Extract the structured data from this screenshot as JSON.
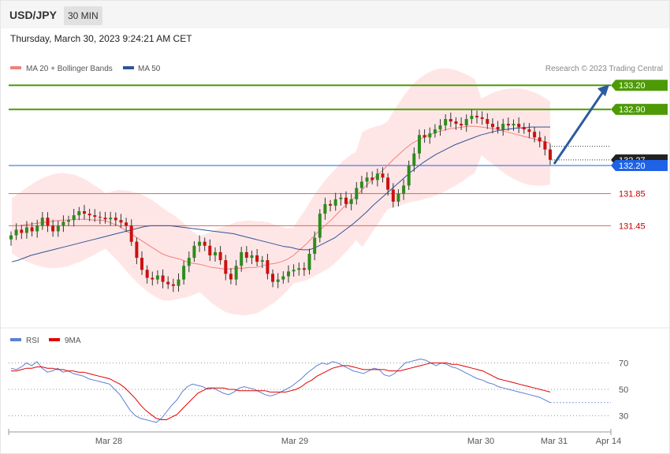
{
  "header": {
    "symbol": "USD/JPY",
    "timeframe": "30 MIN",
    "timestamp": "Thursday, March 30, 2023 9:24:21 AM CET"
  },
  "legend_main": {
    "items": [
      {
        "label": "MA 20 + Bollinger Bands",
        "color": "#f08080"
      },
      {
        "label": "MA 50",
        "color": "#2f5496"
      }
    ],
    "credit": "Research © 2023 Trading Central"
  },
  "legend_rsi": {
    "items": [
      {
        "label": "RSI",
        "color": "#5b7fd6"
      },
      {
        "label": "9MA",
        "color": "#e00000"
      }
    ]
  },
  "colors": {
    "resistance": "#4d9a06",
    "support": "#e06060",
    "current": "#1e62e6",
    "up_candle": "#2e8b1e",
    "down_candle": "#cc1010",
    "band_fill": "#ffdede"
  },
  "chart_data": {
    "type": "candlestick",
    "instrument": "USD/JPY",
    "interval": "30 MIN",
    "y_range": [
      131.0,
      133.3
    ],
    "x_labels": [
      "Mar 28",
      "Mar 29",
      "Mar 30",
      "Mar 31",
      "Apr 14"
    ],
    "levels": [
      {
        "value": 133.2,
        "label": "133.20",
        "kind": "resistance"
      },
      {
        "value": 132.9,
        "label": "132.90",
        "kind": "resistance"
      },
      {
        "value": 132.27,
        "label": "132.27",
        "kind": "last"
      },
      {
        "value": 132.2,
        "label": "132.20",
        "kind": "pivot"
      },
      {
        "value": 131.85,
        "label": "131.85",
        "kind": "support"
      },
      {
        "value": 131.45,
        "label": "131.45",
        "kind": "support"
      }
    ],
    "forecast_arrow": {
      "from": 132.22,
      "to": 133.2
    },
    "close_series": [
      131.33,
      131.4,
      131.36,
      131.43,
      131.38,
      131.45,
      131.55,
      131.45,
      131.38,
      131.45,
      131.5,
      131.52,
      131.58,
      131.63,
      131.6,
      131.58,
      131.56,
      131.55,
      131.53,
      131.55,
      131.52,
      131.49,
      131.45,
      131.25,
      131.05,
      130.9,
      130.8,
      130.78,
      130.83,
      130.75,
      130.72,
      130.7,
      130.78,
      130.95,
      131.05,
      131.2,
      131.25,
      131.2,
      131.08,
      131.12,
      131.02,
      130.85,
      130.78,
      130.95,
      131.12,
      131.05,
      131.08,
      131.0,
      131.02,
      130.85,
      130.75,
      130.78,
      130.82,
      130.88,
      130.9,
      130.92,
      130.9,
      131.1,
      131.3,
      131.6,
      131.72,
      131.7,
      131.78,
      131.8,
      131.72,
      131.78,
      131.92,
      132.0,
      132.05,
      132.02,
      132.1,
      132.05,
      131.9,
      131.75,
      131.85,
      131.95,
      132.2,
      132.35,
      132.58,
      132.55,
      132.6,
      132.65,
      132.7,
      132.78,
      132.75,
      132.72,
      132.7,
      132.78,
      132.82,
      132.8,
      132.78,
      132.72,
      132.68,
      132.65,
      132.72,
      132.7,
      132.72,
      132.68,
      132.65,
      132.62,
      132.55,
      132.5,
      132.4,
      132.27
    ],
    "ma20": [
      131.45,
      131.45,
      131.46,
      131.47,
      131.48,
      131.49,
      131.5,
      131.51,
      131.52,
      131.52,
      131.53,
      131.53,
      131.53,
      131.52,
      131.52,
      131.51,
      131.48,
      131.45,
      131.4,
      131.35,
      131.3,
      131.25,
      131.2,
      131.15,
      131.1,
      131.07,
      131.05,
      131.03,
      131.0,
      130.98,
      130.97,
      130.95,
      130.93,
      130.92,
      130.91,
      130.91,
      130.92,
      130.92,
      130.93,
      130.93,
      130.95,
      130.97,
      130.98,
      131.0,
      131.03,
      131.08,
      131.15,
      131.22,
      131.3,
      131.38,
      131.45,
      131.52,
      131.6,
      131.68,
      131.75,
      131.82,
      131.9,
      131.98,
      132.05,
      132.12,
      132.2,
      132.28,
      132.35,
      132.42,
      132.48,
      132.52,
      132.56,
      132.59,
      132.62,
      132.64,
      132.66,
      132.67,
      132.68,
      132.69,
      132.69,
      132.68,
      132.67,
      132.66,
      132.64,
      132.62,
      132.6,
      132.58,
      132.56,
      132.54,
      132.52,
      132.5,
      132.48
    ],
    "ma50": [
      131.0,
      131.02,
      131.05,
      131.08,
      131.1,
      131.12,
      131.14,
      131.16,
      131.18,
      131.2,
      131.22,
      131.24,
      131.26,
      131.28,
      131.3,
      131.32,
      131.34,
      131.36,
      131.38,
      131.4,
      131.42,
      131.44,
      131.45,
      131.45,
      131.45,
      131.45,
      131.44,
      131.43,
      131.42,
      131.41,
      131.4,
      131.39,
      131.38,
      131.37,
      131.36,
      131.35,
      131.33,
      131.31,
      131.29,
      131.27,
      131.25,
      131.23,
      131.21,
      131.19,
      131.18,
      131.16,
      131.15,
      131.15,
      131.18,
      131.22,
      131.26,
      131.3,
      131.36,
      131.42,
      131.48,
      131.55,
      131.62,
      131.7,
      131.77,
      131.84,
      131.91,
      131.98,
      132.05,
      132.12,
      132.18,
      132.24,
      132.29,
      132.34,
      132.38,
      132.42,
      132.46,
      132.49,
      132.52,
      132.55,
      132.58,
      132.6,
      132.62,
      132.64,
      132.65,
      132.66,
      132.67,
      132.67,
      132.68,
      132.68,
      132.68,
      132.68
    ],
    "rsi": {
      "levels": [
        70,
        50,
        30
      ],
      "rsi": [
        66,
        65,
        67,
        70,
        68,
        71,
        66,
        63,
        64,
        66,
        63,
        64,
        62,
        61,
        60,
        58,
        57,
        56,
        55,
        54,
        50,
        46,
        40,
        34,
        30,
        28,
        27,
        26,
        25,
        28,
        33,
        38,
        42,
        48,
        52,
        54,
        53,
        52,
        50,
        51,
        49,
        47,
        46,
        48,
        51,
        52,
        51,
        50,
        48,
        46,
        45,
        46,
        48,
        50,
        52,
        55,
        58,
        62,
        65,
        68,
        70,
        69,
        71,
        70,
        68,
        66,
        64,
        63,
        62,
        64,
        66,
        65,
        61,
        60,
        62,
        66,
        70,
        71,
        72,
        73,
        72,
        70,
        68,
        70,
        69,
        67,
        66,
        64,
        62,
        60,
        58,
        57,
        55,
        54,
        52,
        51,
        50,
        49,
        48,
        47,
        46,
        45,
        44,
        42,
        40
      ],
      "ma9": [
        64,
        64,
        65,
        66,
        66,
        67,
        67,
        66,
        66,
        65,
        65,
        64,
        64,
        63,
        63,
        62,
        61,
        60,
        59,
        58,
        56,
        54,
        51,
        47,
        43,
        38,
        34,
        31,
        28,
        27,
        27,
        29,
        31,
        35,
        39,
        43,
        47,
        49,
        51,
        51,
        51,
        51,
        50,
        50,
        49,
        49,
        49,
        49,
        49,
        49,
        48,
        48,
        48,
        48,
        49,
        50,
        52,
        55,
        57,
        60,
        62,
        64,
        66,
        67,
        68,
        68,
        67,
        66,
        65,
        65,
        65,
        65,
        65,
        64,
        64,
        64,
        65,
        66,
        67,
        68,
        69,
        70,
        70,
        70,
        70,
        69,
        69,
        68,
        67,
        66,
        65,
        64,
        62,
        60,
        58,
        57,
        56,
        55,
        54,
        53,
        52,
        51,
        50,
        49,
        48
      ]
    }
  }
}
